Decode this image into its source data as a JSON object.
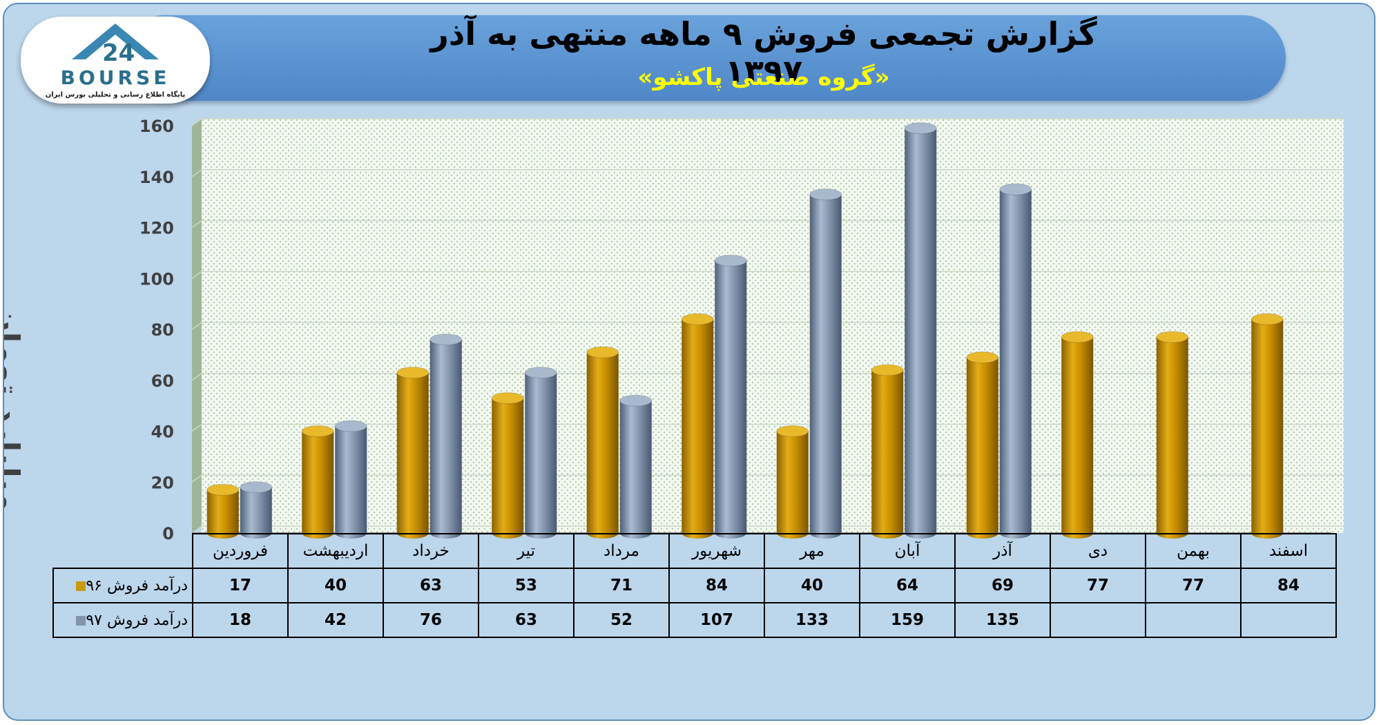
{
  "header": {
    "title": "گزارش تجمعی فروش ۹ ماهه منتهی به آذر ۱۳۹۷",
    "subtitle": "«گروه صنعتی پاکشو»"
  },
  "logo": {
    "wordmark": "BOURSE",
    "tagline": "پایگاه اطلاع رسانی و تحلیلی بورس ایران"
  },
  "chart_data": {
    "type": "bar",
    "title": "گزارش تجمعی فروش ۹ ماهه منتهی به آذر ۱۳۹۷",
    "ylabel": "میلیارد تومان",
    "ylim": [
      0,
      160
    ],
    "yticks": [
      0,
      20,
      40,
      60,
      80,
      100,
      120,
      140,
      160
    ],
    "grid": true,
    "categories": [
      "فروردین",
      "اردیبهشت",
      "خرداد",
      "تیر",
      "مرداد",
      "شهریور",
      "مهر",
      "آبان",
      "آذر",
      "دی",
      "بهمن",
      "اسفند"
    ],
    "series": [
      {
        "name": "درآمد فروش ۹۶",
        "color": "#d4a017",
        "values": [
          17,
          40,
          63,
          53,
          71,
          84,
          40,
          64,
          69,
          77,
          77,
          84
        ]
      },
      {
        "name": "درآمد فروش ۹۷",
        "color": "#8fa3ba",
        "values": [
          18,
          42,
          76,
          63,
          52,
          107,
          133,
          159,
          135,
          null,
          null,
          null
        ]
      }
    ]
  }
}
